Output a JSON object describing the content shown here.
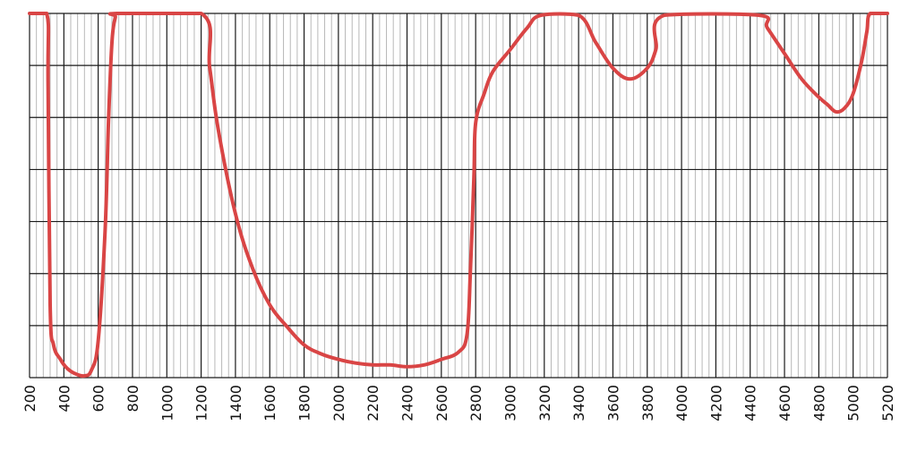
{
  "chart_data": {
    "type": "line",
    "title": "",
    "xlabel": "",
    "ylabel": "",
    "xlim": [
      200,
      5200
    ],
    "ylim": [
      0,
      100
    ],
    "x_ticks": [
      "200",
      "400",
      "600",
      "800",
      "1000",
      "1200",
      "1400",
      "1600",
      "1800",
      "2000",
      "2200",
      "2400",
      "2600",
      "2800",
      "3000",
      "3200",
      "3400",
      "3600",
      "3800",
      "4000",
      "4200",
      "4400",
      "4600",
      "4800",
      "5000",
      "5200"
    ],
    "x_tick_values": [
      200,
      400,
      600,
      800,
      1000,
      1200,
      1400,
      1600,
      1800,
      2000,
      2200,
      2400,
      2600,
      2800,
      3000,
      3200,
      3400,
      3600,
      3800,
      4000,
      4200,
      4400,
      4600,
      4800,
      5000,
      5200
    ],
    "y_major_step": 14.29,
    "grid": true,
    "line_color": "#d94545",
    "series": [
      {
        "x": [
          200,
          300,
          308,
          320,
          340,
          380,
          420,
          470,
          520,
          560,
          600,
          640,
          660,
          680,
          700,
          710,
          1200,
          1250,
          1300,
          1400,
          1500,
          1600,
          1700,
          1800,
          1900,
          2000,
          2100,
          2200,
          2300,
          2400,
          2500,
          2600,
          2700,
          2750,
          2770,
          2790,
          2800,
          2850,
          2900,
          3000,
          3100,
          3180,
          3400,
          3500,
          3600,
          3700,
          3800,
          3850,
          3900,
          4450,
          4500,
          4600,
          4700,
          4800,
          4850,
          4900,
          4950,
          5000,
          5050,
          5080,
          5100,
          5200
        ],
        "y": [
          100,
          100,
          80,
          20,
          9,
          5,
          2.5,
          1,
          0.5,
          2,
          10,
          40,
          70,
          92,
          99,
          100,
          100,
          85,
          68,
          45,
          30,
          20,
          14,
          9,
          6.5,
          5,
          4,
          3.5,
          3.5,
          3,
          3.5,
          5,
          7,
          12,
          30,
          55,
          70,
          78,
          84,
          90,
          96,
          99.5,
          99.5,
          92,
          85,
          82,
          85,
          90,
          99.5,
          99.5,
          96,
          89,
          82,
          77,
          75,
          73,
          74,
          78,
          87,
          95,
          100,
          100
        ]
      }
    ]
  }
}
